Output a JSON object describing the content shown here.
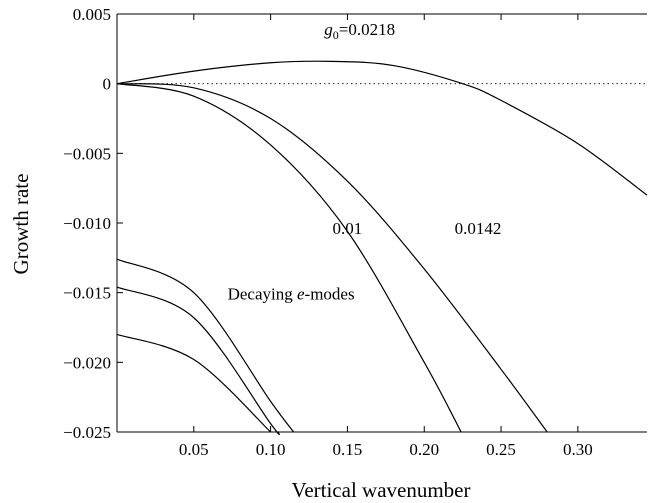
{
  "chart_data": {
    "type": "line",
    "title": "",
    "xlabel": "Vertical wavenumber",
    "ylabel": "Growth rate",
    "xlim": [
      0,
      0.345
    ],
    "ylim": [
      -0.025,
      0.005
    ],
    "grid": false,
    "x_ticks": [
      0.05,
      0.1,
      0.15,
      0.2,
      0.25,
      0.3
    ],
    "x_tick_labels": [
      "0.05",
      "0.10",
      "0.15",
      "0.20",
      "0.25",
      "0.30"
    ],
    "y_ticks": [
      0.005,
      0,
      -0.005,
      -0.01,
      -0.015,
      -0.02,
      -0.025
    ],
    "y_tick_labels": [
      "0.005",
      "0",
      "−0.005",
      "−0.010",
      "−0.015",
      "−0.020",
      "−0.025"
    ],
    "series": [
      {
        "x": [
          0,
          0.05,
          0.1,
          0.14,
          0.18,
          0.225,
          0.25,
          0.3,
          0.345
        ],
        "y": [
          0,
          0.0009,
          0.0015,
          0.0016,
          0.0013,
          0,
          -0.0012,
          -0.0043,
          -0.008
        ]
      },
      {
        "x": [
          0,
          0.05,
          0.1,
          0.15,
          0.2,
          0.25,
          0.28
        ],
        "y": [
          0,
          -0.0003,
          -0.0025,
          -0.007,
          -0.0133,
          -0.0205,
          -0.025
        ]
      },
      {
        "x": [
          0,
          0.05,
          0.1,
          0.15,
          0.2,
          0.224
        ],
        "y": [
          0,
          -0.0009,
          -0.0044,
          -0.0106,
          -0.02,
          -0.025
        ]
      },
      {
        "x": [
          0,
          0.05,
          0.1,
          0.115
        ],
        "y": [
          -0.0126,
          -0.015,
          -0.0228,
          -0.025
        ]
      },
      {
        "x": [
          0,
          0.05,
          0.1,
          0.105
        ],
        "y": [
          -0.0146,
          -0.0168,
          -0.0244,
          -0.025
        ]
      },
      {
        "x": [
          0,
          0.05,
          0.1
        ],
        "y": [
          -0.018,
          -0.0198,
          -0.025
        ]
      }
    ],
    "annotations": [
      {
        "text_prefix": "g",
        "text_sub": "0",
        "text_suffix": "=0.0218",
        "x": 0.158,
        "y": 0.0035
      },
      {
        "text": "0.0142",
        "x": 0.235,
        "y": -0.0108
      },
      {
        "text": "0.01",
        "x": 0.15,
        "y": -0.0108
      },
      {
        "text_prefix": "Decaying ",
        "text_italic": "e",
        "text_suffix": "-modes",
        "x": 0.072,
        "y": -0.0155
      }
    ]
  }
}
